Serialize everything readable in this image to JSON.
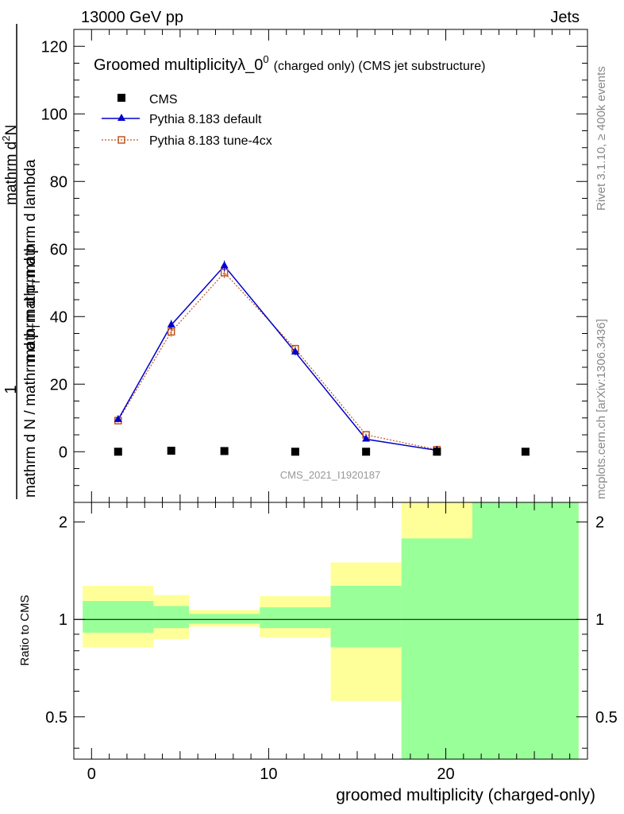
{
  "header": {
    "left": "13000 GeV pp",
    "right": "Jets",
    "side_rivet": "Rivet 3.1.10, ≥ 400k events",
    "side_mcplots": "mcplots.cern.ch [arXiv:1306.3436]"
  },
  "colors": {
    "cms": "#000000",
    "pythia_default": "#0000cc",
    "pythia_tune": "#c0561e",
    "band_yellow": "#ffff99",
    "band_green": "#99ff99"
  },
  "chart_data": [
    {
      "type": "scatter",
      "title": "Groomed multiplicityλ_0",
      "title_sup": "0",
      "title_suffix": "(charged only) (CMS jet substructure)",
      "ylabel_fraction_numerator": "1",
      "ylabel_denominator_text": "mathrm d N / mathrm d p",
      "ylabel_denominator_sub": "T",
      "ylabel_denominator_tail": "mathrm d p",
      "ylabel_main": "mathrm d",
      "ylabel_main_sup": "2",
      "ylabel_main_mid": "N",
      "ylabel_main_den_a": "mathrm d p",
      "ylabel_main_den_sub": "T",
      "ylabel_main_den_b": "mathrm d lambda",
      "ylim": [
        -15,
        125
      ],
      "xlim": [
        -1,
        28
      ],
      "y_ticks": [
        0,
        20,
        40,
        60,
        80,
        100,
        120
      ],
      "y_tick_labels": [
        "0",
        "20",
        "40",
        "60",
        "80",
        "100",
        "120"
      ],
      "watermark": "CMS_2021_I1920187",
      "legend": [
        "CMS",
        "Pythia 8.183 default",
        "Pythia 8.183 tune-4cx"
      ],
      "legend_position": "top-left",
      "series": [
        {
          "name": "CMS",
          "x": [
            1.5,
            4.5,
            7.5,
            11.5,
            15.5,
            19.5,
            24.5
          ],
          "y": [
            0,
            0.3,
            0.2,
            0,
            0,
            0,
            0
          ]
        },
        {
          "name": "Pythia 8.183 default",
          "x": [
            1.5,
            4.5,
            7.5,
            11.5,
            15.5,
            19.5
          ],
          "y": [
            9.5,
            37.5,
            55,
            29.5,
            3.7,
            0.4
          ],
          "err": [
            0.6,
            1.5,
            1.6,
            1.0,
            0.4,
            0.15
          ]
        },
        {
          "name": "Pythia 8.183 tune-4cx",
          "x": [
            1.5,
            4.5,
            7.5,
            11.5,
            15.5,
            19.5
          ],
          "y": [
            9.2,
            35.5,
            53,
            30.5,
            5.0,
            0.6
          ],
          "err": [
            0.6,
            1.5,
            1.6,
            1.0,
            0.4,
            0.15
          ]
        }
      ]
    },
    {
      "type": "area",
      "ylabel": "Ratio to CMS",
      "xlabel": "groomed multiplicity (charged-only)",
      "ylim": [
        0.37,
        2.3
      ],
      "ylog": true,
      "y_ticks": [
        0.5,
        1,
        2
      ],
      "y_tick_labels": [
        "0.5",
        "1",
        "2"
      ],
      "x_ticks": [
        0,
        10,
        20
      ],
      "x_tick_labels": [
        "0",
        "10",
        "20"
      ],
      "reference_line": 1,
      "bins": [
        {
          "x0": -0.5,
          "x1": 3.5,
          "yellow": [
            0.82,
            1.27
          ],
          "green": [
            0.91,
            1.14
          ]
        },
        {
          "x0": 3.5,
          "x1": 5.5,
          "yellow": [
            0.87,
            1.19
          ],
          "green": [
            0.94,
            1.1
          ]
        },
        {
          "x0": 5.5,
          "x1": 9.5,
          "yellow": [
            0.95,
            1.07
          ],
          "green": [
            0.97,
            1.04
          ]
        },
        {
          "x0": 9.5,
          "x1": 13.5,
          "yellow": [
            0.88,
            1.18
          ],
          "green": [
            0.94,
            1.09
          ]
        },
        {
          "x0": 13.5,
          "x1": 17.5,
          "yellow": [
            0.56,
            1.5
          ],
          "green": [
            0.82,
            1.27
          ]
        },
        {
          "x0": 17.5,
          "x1": 21.5,
          "yellow": [
            0.37,
            2.3
          ],
          "green": [
            0.37,
            1.78
          ]
        },
        {
          "x0": 21.5,
          "x1": 27.5,
          "yellow": [
            0.37,
            2.3
          ],
          "green": [
            0.37,
            2.3
          ]
        }
      ]
    }
  ]
}
